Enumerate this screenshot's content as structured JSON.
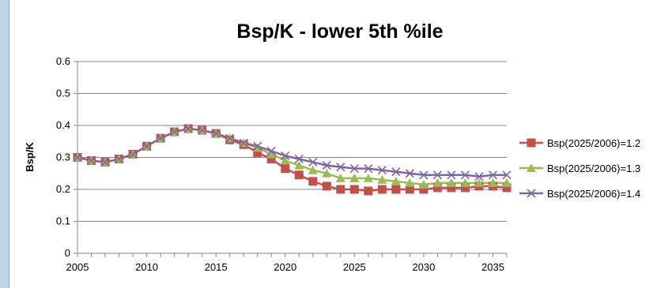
{
  "chart_data": {
    "type": "line",
    "title": "Bsp/K - lower 5th %ile",
    "xlabel": "",
    "ylabel": "Bsp/K",
    "xlim": [
      2005,
      2036
    ],
    "ylim": [
      0,
      0.6
    ],
    "xticks": [
      2005,
      2010,
      2015,
      2020,
      2025,
      2030,
      2035
    ],
    "yticks": [
      0,
      0.1,
      0.2,
      0.3,
      0.4,
      0.5,
      0.6
    ],
    "grid": "horizontal",
    "legend_position": "right",
    "x": [
      2005,
      2006,
      2007,
      2008,
      2009,
      2010,
      2011,
      2012,
      2013,
      2014,
      2015,
      2016,
      2017,
      2018,
      2019,
      2020,
      2021,
      2022,
      2023,
      2024,
      2025,
      2026,
      2027,
      2028,
      2029,
      2030,
      2031,
      2032,
      2033,
      2034,
      2035,
      2036
    ],
    "series": [
      {
        "name": "Bsp(2025/2006)=1.2",
        "color": "#c0504d",
        "marker": "square",
        "values": [
          0.3,
          0.29,
          0.285,
          0.295,
          0.31,
          0.335,
          0.36,
          0.38,
          0.39,
          0.385,
          0.375,
          0.355,
          0.34,
          0.315,
          0.295,
          0.265,
          0.245,
          0.225,
          0.21,
          0.2,
          0.2,
          0.195,
          0.2,
          0.2,
          0.2,
          0.2,
          0.205,
          0.205,
          0.205,
          0.21,
          0.21,
          0.205
        ]
      },
      {
        "name": "Bsp(2025/2006)=1.3",
        "color": "#9bbb59",
        "marker": "triangle",
        "values": [
          0.3,
          0.29,
          0.285,
          0.295,
          0.31,
          0.335,
          0.36,
          0.38,
          0.39,
          0.385,
          0.375,
          0.36,
          0.345,
          0.33,
          0.31,
          0.29,
          0.275,
          0.26,
          0.25,
          0.235,
          0.235,
          0.235,
          0.23,
          0.225,
          0.22,
          0.215,
          0.22,
          0.22,
          0.22,
          0.22,
          0.22,
          0.22
        ]
      },
      {
        "name": "Bsp(2025/2006)=1.4",
        "color": "#8064a2",
        "marker": "x",
        "values": [
          0.3,
          0.29,
          0.285,
          0.295,
          0.31,
          0.335,
          0.36,
          0.38,
          0.39,
          0.385,
          0.375,
          0.36,
          0.345,
          0.335,
          0.32,
          0.305,
          0.295,
          0.285,
          0.275,
          0.27,
          0.265,
          0.265,
          0.26,
          0.255,
          0.25,
          0.245,
          0.245,
          0.245,
          0.245,
          0.24,
          0.245,
          0.245
        ]
      }
    ]
  }
}
